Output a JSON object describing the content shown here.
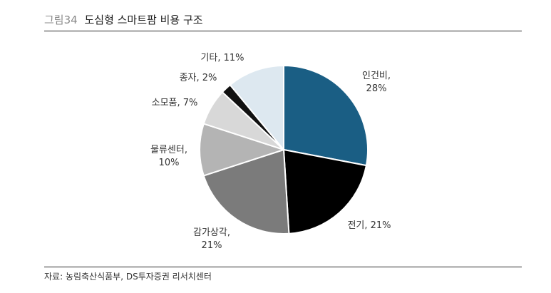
{
  "header": {
    "figure_label": "그림34",
    "title": "도심형 스마트팜 비용 구조"
  },
  "footer": {
    "source": "자료: 농림축산식품부, DS투자증권 리서치센터"
  },
  "chart_data": {
    "type": "pie",
    "title": "도심형 스마트팜 비용 구조",
    "start_angle_deg": 0,
    "direction": "clockwise",
    "slices": [
      {
        "label": "인건비",
        "value": 28,
        "display": "28%",
        "color": "#1a5e84"
      },
      {
        "label": "전기",
        "value": 21,
        "display": "21%",
        "color": "#000000"
      },
      {
        "label": "감가상각",
        "value": 21,
        "display": "21%",
        "color": "#7b7b7b"
      },
      {
        "label": "물류센터",
        "value": 10,
        "display": "10%",
        "color": "#b4b4b4"
      },
      {
        "label": "소모품",
        "value": 7,
        "display": "7%",
        "color": "#d8d8d8"
      },
      {
        "label": "종자",
        "value": 2,
        "display": "2%",
        "color": "#111111"
      },
      {
        "label": "기타",
        "value": 11,
        "display": "11%",
        "color": "#dde8f0"
      }
    ]
  }
}
